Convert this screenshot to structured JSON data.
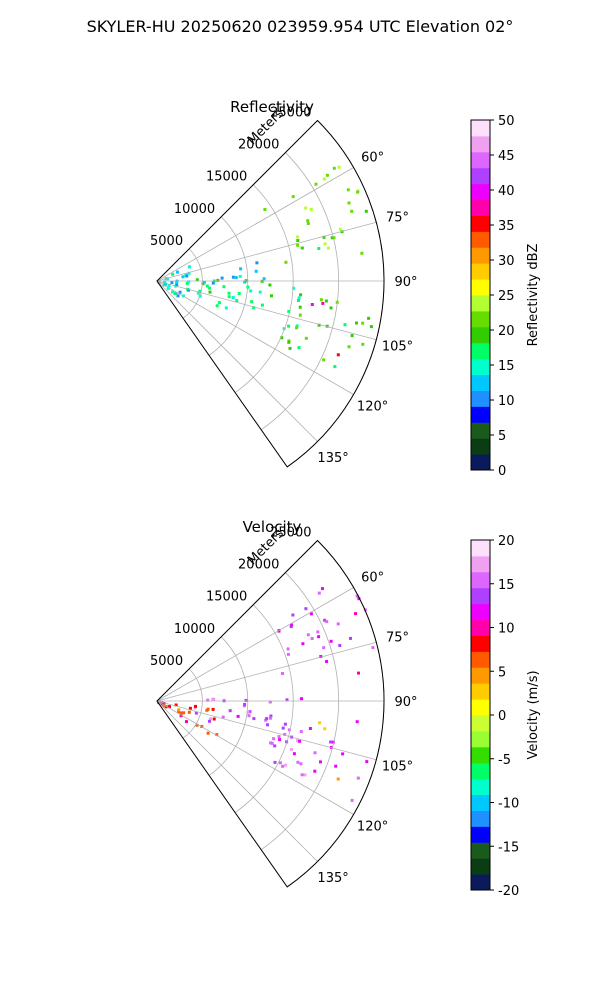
{
  "figure": {
    "title": "SKYLER-HU  20250620  023959.954 UTC Elevation 02°"
  },
  "chart_data": [
    {
      "type": "heatmap",
      "subtype": "polar-sector (PPI radar scan)",
      "title": "Reflectivity",
      "radial_label": "Meters",
      "radial_range": [
        0,
        25000
      ],
      "radial_ticks": [
        "5000",
        "10000",
        "15000",
        "20000",
        "25000"
      ],
      "azimuth_range_deg": [
        45,
        145
      ],
      "azimuth_ticks": [
        "60°",
        "75°",
        "90°",
        "105°",
        "120°",
        "135°"
      ],
      "grid": true,
      "colorbar": {
        "label": "Reflectivity dBZ",
        "range": [
          0,
          50
        ],
        "ticks": [
          "0",
          "5",
          "10",
          "15",
          "20",
          "25",
          "30",
          "35",
          "40",
          "45",
          "50"
        ]
      },
      "field_blobs": [
        {
          "az": [
            55,
            82
          ],
          "r": [
            14000,
            27000
          ],
          "value": 21
        },
        {
          "az": [
            86,
            112
          ],
          "r": [
            3000,
            16000
          ],
          "value": 17
        },
        {
          "az": [
            78,
            92
          ],
          "r": [
            5000,
            12000
          ],
          "value": 12
        },
        {
          "az": [
            95,
            118
          ],
          "r": [
            14000,
            24000
          ],
          "value": 20
        },
        {
          "az": [
            60,
            128
          ],
          "r": [
            0,
            4000
          ],
          "value": 14
        },
        {
          "az": [
            95,
            100
          ],
          "r": [
            16000,
            20000
          ],
          "value": 36
        },
        {
          "az": [
            110,
            114
          ],
          "r": [
            21000,
            24000
          ],
          "value": 34
        }
      ]
    },
    {
      "type": "heatmap",
      "subtype": "polar-sector (PPI radar scan)",
      "title": "Velocity",
      "radial_label": "Meters",
      "radial_range": [
        0,
        25000
      ],
      "radial_ticks": [
        "5000",
        "10000",
        "15000",
        "20000",
        "25000"
      ],
      "azimuth_range_deg": [
        45,
        145
      ],
      "azimuth_ticks": [
        "60°",
        "75°",
        "90°",
        "105°",
        "120°",
        "135°"
      ],
      "grid": true,
      "colorbar": {
        "label": "Velocity (m/s)",
        "range": [
          -20,
          20
        ],
        "ticks": [
          "-20",
          "-15",
          "-10",
          "-5",
          "0",
          "5",
          "10",
          "15",
          "20"
        ]
      },
      "field_blobs": [
        {
          "az": [
            55,
            82
          ],
          "r": [
            14000,
            27000
          ],
          "value": 13
        },
        {
          "az": [
            86,
            112
          ],
          "r": [
            3000,
            16000
          ],
          "value": 15
        },
        {
          "az": [
            95,
            118
          ],
          "r": [
            14000,
            24000
          ],
          "value": 14
        },
        {
          "az": [
            95,
            125
          ],
          "r": [
            0,
            8000
          ],
          "value": 8
        },
        {
          "az": [
            95,
            100
          ],
          "r": [
            16000,
            20000
          ],
          "value": 0
        },
        {
          "az": [
            110,
            114
          ],
          "r": [
            21000,
            24000
          ],
          "value": 3
        }
      ]
    }
  ],
  "colors": {
    "grid": "#b0b0b0",
    "reflectivity_scale": [
      "#0b1a5c",
      "#0b3d14",
      "#1a5a1a",
      "#0000ff",
      "#1e90ff",
      "#00c8ff",
      "#00ffcc",
      "#00ff66",
      "#33cc00",
      "#66dd00",
      "#b4ff32",
      "#ffff00",
      "#ffcc00",
      "#ff9900",
      "#ff5a00",
      "#ff0000",
      "#ff00aa",
      "#ee00ff",
      "#b040ff",
      "#dd66ff",
      "#f0a0f0",
      "#fce0fc"
    ],
    "velocity_scale": [
      "#0b1a5c",
      "#0b3d14",
      "#1a5a1a",
      "#0000ff",
      "#1e90ff",
      "#00c8ff",
      "#00ffcc",
      "#00ff66",
      "#33dd00",
      "#99ff33",
      "#ccff33",
      "#ffff00",
      "#ffcc00",
      "#ff9900",
      "#ff5a00",
      "#ff0000",
      "#ff00aa",
      "#ee00ff",
      "#b040ff",
      "#dd66ff",
      "#f0a0f0",
      "#fce0fc"
    ]
  }
}
